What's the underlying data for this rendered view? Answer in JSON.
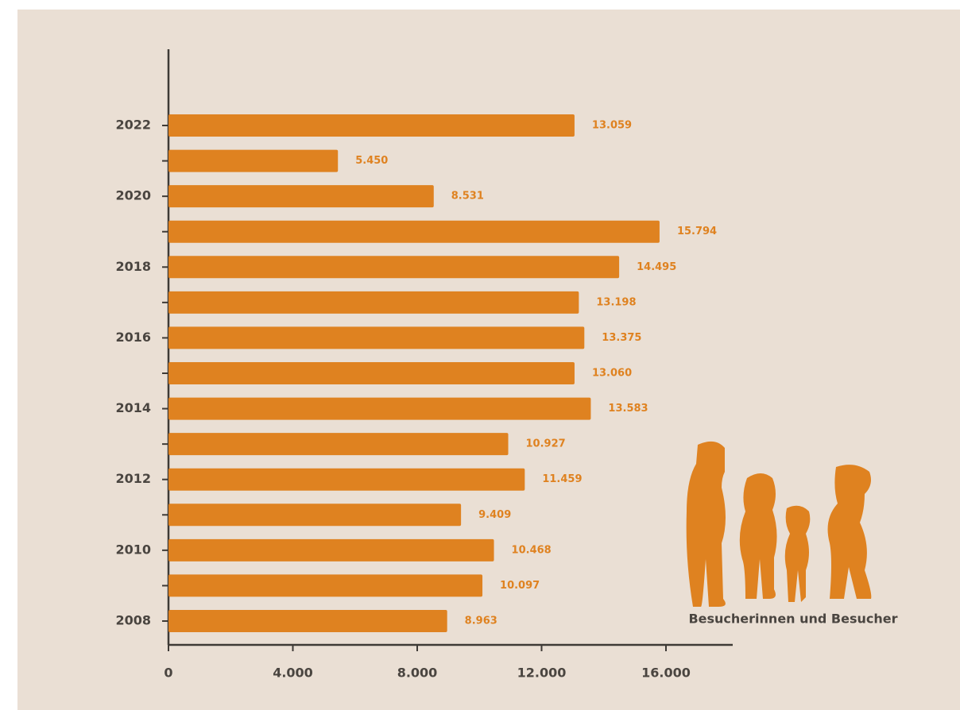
{
  "chart_data": {
    "type": "bar",
    "orientation": "horizontal",
    "categories": [
      "2008",
      null,
      "2010",
      null,
      "2012",
      null,
      "2014",
      null,
      "2016",
      null,
      "2018",
      null,
      "2020",
      null,
      "2022"
    ],
    "series": [
      {
        "name": "Besucherinnen und Besucher",
        "color": "#df8220",
        "values": [
          8963,
          10097,
          10468,
          9409,
          11459,
          10927,
          13583,
          13060,
          13375,
          13198,
          14495,
          15794,
          8531,
          5450,
          13059
        ],
        "value_labels": [
          "8.963",
          "10.097",
          "10.468",
          "9.409",
          "11.459",
          "10.927",
          "13.583",
          "13.060",
          "13.375",
          "13.198",
          "14.495",
          "15.794",
          "8.531",
          "5.450",
          "13.059"
        ]
      }
    ],
    "xlim": [
      0,
      18000
    ],
    "xticks": [
      0,
      {
        "value": 4000,
        "label": "4.000"
      },
      {
        "value": 8000,
        "label": "8.000"
      },
      {
        "value": 12000,
        "label": "12.000"
      },
      {
        "value": 16000,
        "label": "16.000"
      }
    ],
    "grid": false
  }
}
